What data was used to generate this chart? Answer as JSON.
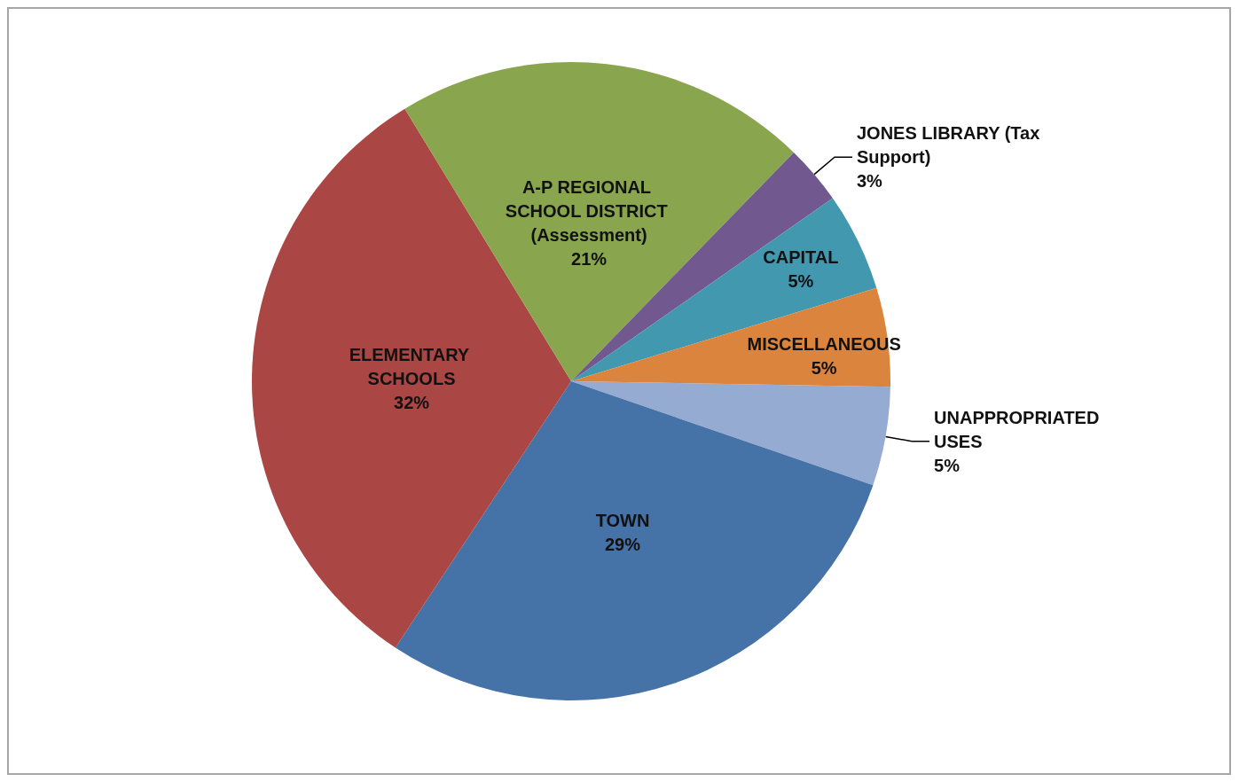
{
  "chart_data": {
    "type": "pie",
    "categories": [
      "UNAPPROPRIATED USES",
      "TOWN",
      "ELEMENTARY SCHOOLS",
      "A-P REGIONAL SCHOOL DISTRICT (Assessment)",
      "JONES LIBRARY (Tax Support)",
      "CAPITAL",
      "MISCELLANEOUS"
    ],
    "values": [
      5,
      29,
      32,
      21,
      3,
      5,
      5
    ],
    "value_labels": [
      "5%",
      "29%",
      "32%",
      "21%",
      "3%",
      "5%",
      "5%"
    ],
    "colors": [
      "#95abd2",
      "#4572a7",
      "#aa4643",
      "#89a54e",
      "#71588f",
      "#4198af",
      "#db843d"
    ],
    "legend": false
  }
}
